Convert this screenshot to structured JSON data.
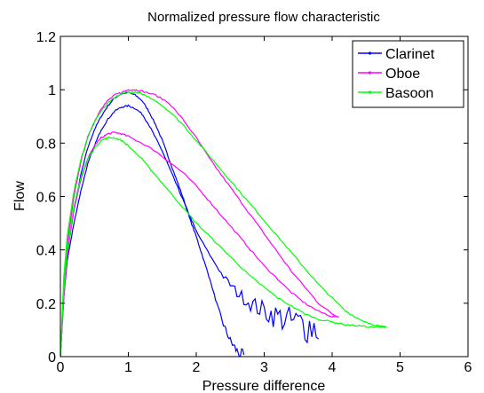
{
  "chart_data": {
    "type": "line",
    "title": "Normalized pressure flow characteristic",
    "xlabel": "Pressure difference",
    "ylabel": "Flow",
    "xlim": [
      0,
      6
    ],
    "ylim": [
      0,
      1.2
    ],
    "xticks": [
      0,
      1,
      2,
      3,
      4,
      5,
      6
    ],
    "yticks": [
      0,
      0.2,
      0.4,
      0.6,
      0.8,
      1,
      1.2
    ],
    "xtick_labels": [
      "0",
      "1",
      "2",
      "3",
      "4",
      "5",
      "6"
    ],
    "ytick_labels": [
      "0",
      "0.2",
      "0.4",
      "0.6",
      "0.8",
      "1",
      "1.2"
    ],
    "grid": false,
    "legend_position": "top-right",
    "series": [
      {
        "name": "Clarinet",
        "color": "#0000ff",
        "upper": [
          [
            0,
            0
          ],
          [
            0.05,
            0.25
          ],
          [
            0.1,
            0.4
          ],
          [
            0.2,
            0.55
          ],
          [
            0.3,
            0.68
          ],
          [
            0.4,
            0.78
          ],
          [
            0.5,
            0.85
          ],
          [
            0.6,
            0.9
          ],
          [
            0.7,
            0.94
          ],
          [
            0.8,
            0.97
          ],
          [
            0.9,
            0.985
          ],
          [
            1.0,
            0.99
          ],
          [
            1.1,
            0.98
          ],
          [
            1.2,
            0.96
          ],
          [
            1.3,
            0.92
          ],
          [
            1.4,
            0.87
          ],
          [
            1.5,
            0.81
          ],
          [
            1.6,
            0.74
          ],
          [
            1.7,
            0.67
          ],
          [
            1.8,
            0.6
          ],
          [
            1.9,
            0.52
          ],
          [
            2.0,
            0.45
          ],
          [
            2.1,
            0.37
          ],
          [
            2.2,
            0.29
          ],
          [
            2.3,
            0.2
          ],
          [
            2.4,
            0.12
          ],
          [
            2.5,
            0.06
          ],
          [
            2.6,
            0.02
          ],
          [
            2.7,
            0.0
          ]
        ],
        "lower": [
          [
            0,
            0
          ],
          [
            0.05,
            0.22
          ],
          [
            0.1,
            0.36
          ],
          [
            0.2,
            0.5
          ],
          [
            0.3,
            0.62
          ],
          [
            0.4,
            0.72
          ],
          [
            0.5,
            0.79
          ],
          [
            0.6,
            0.85
          ],
          [
            0.7,
            0.89
          ],
          [
            0.8,
            0.92
          ],
          [
            0.9,
            0.935
          ],
          [
            1.0,
            0.94
          ],
          [
            1.1,
            0.93
          ],
          [
            1.2,
            0.91
          ],
          [
            1.3,
            0.87
          ],
          [
            1.4,
            0.82
          ],
          [
            1.5,
            0.77
          ],
          [
            1.6,
            0.71
          ],
          [
            1.7,
            0.65
          ],
          [
            1.8,
            0.59
          ],
          [
            1.9,
            0.53
          ],
          [
            2.0,
            0.47
          ],
          [
            2.2,
            0.38
          ],
          [
            2.4,
            0.3
          ],
          [
            2.6,
            0.24
          ],
          [
            2.8,
            0.2
          ],
          [
            3.0,
            0.17
          ],
          [
            3.2,
            0.15
          ],
          [
            3.4,
            0.13
          ],
          [
            3.6,
            0.12
          ],
          [
            3.8,
            0.11
          ]
        ],
        "noise_x": [
          2.2,
          3.8
        ],
        "noise_amplitude": 0.08
      },
      {
        "name": "Oboe",
        "color": "#ff00ff",
        "upper": [
          [
            0,
            0
          ],
          [
            0.05,
            0.25
          ],
          [
            0.1,
            0.42
          ],
          [
            0.2,
            0.6
          ],
          [
            0.3,
            0.73
          ],
          [
            0.4,
            0.82
          ],
          [
            0.5,
            0.88
          ],
          [
            0.6,
            0.93
          ],
          [
            0.7,
            0.96
          ],
          [
            0.8,
            0.98
          ],
          [
            0.9,
            0.99
          ],
          [
            1.0,
            1.0
          ],
          [
            1.1,
            1.0
          ],
          [
            1.2,
            0.995
          ],
          [
            1.4,
            0.98
          ],
          [
            1.6,
            0.95
          ],
          [
            1.8,
            0.89
          ],
          [
            2.0,
            0.82
          ],
          [
            2.2,
            0.74
          ],
          [
            2.4,
            0.67
          ],
          [
            2.6,
            0.6
          ],
          [
            2.8,
            0.53
          ],
          [
            3.0,
            0.46
          ],
          [
            3.2,
            0.39
          ],
          [
            3.4,
            0.32
          ],
          [
            3.6,
            0.26
          ],
          [
            3.8,
            0.2
          ],
          [
            4.0,
            0.16
          ],
          [
            4.1,
            0.15
          ]
        ],
        "lower": [
          [
            0,
            0
          ],
          [
            0.05,
            0.22
          ],
          [
            0.1,
            0.38
          ],
          [
            0.2,
            0.55
          ],
          [
            0.3,
            0.66
          ],
          [
            0.4,
            0.74
          ],
          [
            0.5,
            0.79
          ],
          [
            0.6,
            0.82
          ],
          [
            0.7,
            0.835
          ],
          [
            0.8,
            0.84
          ],
          [
            0.9,
            0.835
          ],
          [
            1.0,
            0.825
          ],
          [
            1.2,
            0.8
          ],
          [
            1.4,
            0.77
          ],
          [
            1.6,
            0.73
          ],
          [
            1.8,
            0.69
          ],
          [
            2.0,
            0.64
          ],
          [
            2.2,
            0.58
          ],
          [
            2.4,
            0.52
          ],
          [
            2.6,
            0.46
          ],
          [
            2.8,
            0.4
          ],
          [
            3.0,
            0.34
          ],
          [
            3.2,
            0.29
          ],
          [
            3.4,
            0.24
          ],
          [
            3.6,
            0.2
          ],
          [
            3.8,
            0.17
          ],
          [
            4.0,
            0.15
          ],
          [
            4.1,
            0.15
          ]
        ]
      },
      {
        "name": "Basoon",
        "color": "#00ff00",
        "upper": [
          [
            0,
            0
          ],
          [
            0.05,
            0.3
          ],
          [
            0.1,
            0.45
          ],
          [
            0.2,
            0.62
          ],
          [
            0.3,
            0.74
          ],
          [
            0.4,
            0.82
          ],
          [
            0.5,
            0.88
          ],
          [
            0.6,
            0.92
          ],
          [
            0.7,
            0.95
          ],
          [
            0.8,
            0.97
          ],
          [
            0.9,
            0.985
          ],
          [
            1.0,
            0.99
          ],
          [
            1.1,
            0.99
          ],
          [
            1.2,
            0.985
          ],
          [
            1.4,
            0.96
          ],
          [
            1.6,
            0.92
          ],
          [
            1.8,
            0.87
          ],
          [
            2.0,
            0.81
          ],
          [
            2.2,
            0.75
          ],
          [
            2.4,
            0.69
          ],
          [
            2.6,
            0.63
          ],
          [
            2.8,
            0.57
          ],
          [
            3.0,
            0.51
          ],
          [
            3.2,
            0.45
          ],
          [
            3.4,
            0.39
          ],
          [
            3.6,
            0.33
          ],
          [
            3.8,
            0.27
          ],
          [
            4.0,
            0.22
          ],
          [
            4.2,
            0.17
          ],
          [
            4.4,
            0.14
          ],
          [
            4.6,
            0.12
          ],
          [
            4.8,
            0.11
          ]
        ],
        "lower": [
          [
            0,
            0
          ],
          [
            0.05,
            0.25
          ],
          [
            0.1,
            0.4
          ],
          [
            0.2,
            0.56
          ],
          [
            0.3,
            0.67
          ],
          [
            0.4,
            0.74
          ],
          [
            0.5,
            0.78
          ],
          [
            0.6,
            0.81
          ],
          [
            0.7,
            0.82
          ],
          [
            0.8,
            0.82
          ],
          [
            0.9,
            0.81
          ],
          [
            1.0,
            0.79
          ],
          [
            1.2,
            0.74
          ],
          [
            1.4,
            0.68
          ],
          [
            1.6,
            0.62
          ],
          [
            1.8,
            0.56
          ],
          [
            2.0,
            0.5
          ],
          [
            2.2,
            0.45
          ],
          [
            2.4,
            0.4
          ],
          [
            2.6,
            0.35
          ],
          [
            2.8,
            0.3
          ],
          [
            3.0,
            0.26
          ],
          [
            3.2,
            0.22
          ],
          [
            3.4,
            0.19
          ],
          [
            3.6,
            0.16
          ],
          [
            3.8,
            0.14
          ],
          [
            4.0,
            0.13
          ],
          [
            4.2,
            0.12
          ],
          [
            4.4,
            0.115
          ],
          [
            4.6,
            0.11
          ],
          [
            4.8,
            0.11
          ]
        ]
      }
    ]
  }
}
